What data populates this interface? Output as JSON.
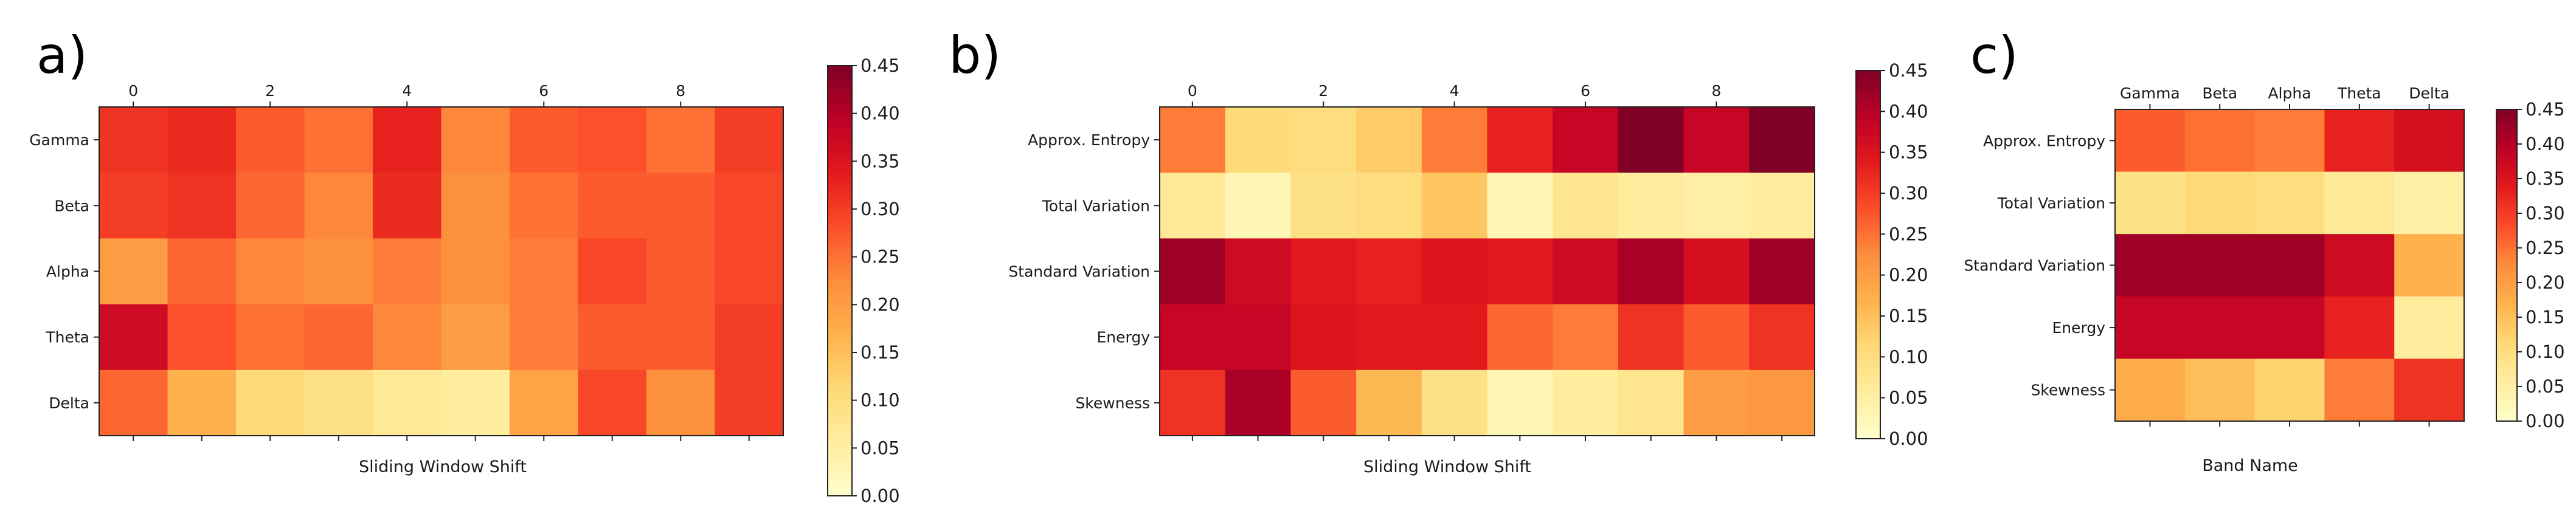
{
  "colors": {
    "ylorrd": [
      "#ffffcc",
      "#ffeda0",
      "#fed976",
      "#feb24c",
      "#fd8d3c",
      "#fc4e2a",
      "#e31a1c",
      "#bd0026",
      "#800026"
    ]
  },
  "chart_data": [
    {
      "type": "heatmap",
      "panel": "a)",
      "xlabel": "Sliding Window Shift",
      "ylabel": "",
      "x_tick_labels": [
        "0",
        "2",
        "4",
        "6",
        "8"
      ],
      "x_tick_positions": [
        0,
        2,
        4,
        6,
        8
      ],
      "x_ticks_top": true,
      "n_cols": 10,
      "rows": [
        "Gamma",
        "Beta",
        "Alpha",
        "Theta",
        "Delta"
      ],
      "values": [
        [
          0.31,
          0.32,
          0.27,
          0.25,
          0.33,
          0.23,
          0.27,
          0.28,
          0.25,
          0.3
        ],
        [
          0.3,
          0.31,
          0.26,
          0.23,
          0.32,
          0.22,
          0.25,
          0.27,
          0.27,
          0.29
        ],
        [
          0.2,
          0.26,
          0.23,
          0.22,
          0.24,
          0.22,
          0.24,
          0.29,
          0.27,
          0.29
        ],
        [
          0.37,
          0.28,
          0.25,
          0.26,
          0.23,
          0.2,
          0.24,
          0.27,
          0.27,
          0.3
        ],
        [
          0.26,
          0.17,
          0.11,
          0.09,
          0.07,
          0.06,
          0.19,
          0.29,
          0.22,
          0.3
        ]
      ],
      "vmin": 0.0,
      "vmax": 0.45,
      "colorbar_ticks": [
        "0.00",
        "0.05",
        "0.10",
        "0.15",
        "0.20",
        "0.25",
        "0.30",
        "0.35",
        "0.40",
        "0.45"
      ],
      "colormap": "YlOrRd"
    },
    {
      "type": "heatmap",
      "panel": "b)",
      "xlabel": "Sliding Window Shift",
      "ylabel": "",
      "x_tick_labels": [
        "0",
        "2",
        "4",
        "6",
        "8"
      ],
      "x_tick_positions": [
        0,
        2,
        4,
        6,
        8
      ],
      "x_ticks_top": true,
      "n_cols": 10,
      "rows": [
        "Approx. Entropy",
        "Total Variation",
        "Standard Variation",
        "Energy",
        "Skewness"
      ],
      "values": [
        [
          0.24,
          0.11,
          0.1,
          0.13,
          0.24,
          0.33,
          0.38,
          0.45,
          0.38,
          0.45
        ],
        [
          0.07,
          0.03,
          0.09,
          0.1,
          0.14,
          0.03,
          0.08,
          0.06,
          0.05,
          0.06
        ],
        [
          0.42,
          0.37,
          0.34,
          0.33,
          0.35,
          0.34,
          0.37,
          0.41,
          0.36,
          0.42
        ],
        [
          0.38,
          0.38,
          0.35,
          0.34,
          0.34,
          0.26,
          0.24,
          0.31,
          0.27,
          0.31
        ],
        [
          0.31,
          0.41,
          0.27,
          0.16,
          0.09,
          0.03,
          0.06,
          0.08,
          0.2,
          0.21
        ]
      ],
      "vmin": 0.0,
      "vmax": 0.45,
      "colorbar_ticks": [
        "0.00",
        "0.05",
        "0.10",
        "0.15",
        "0.20",
        "0.25",
        "0.30",
        "0.35",
        "0.40",
        "0.45"
      ],
      "colormap": "YlOrRd"
    },
    {
      "type": "heatmap",
      "panel": "c)",
      "xlabel": "Band Name",
      "ylabel": "",
      "x_tick_labels": [
        "Gamma",
        "Beta",
        "Alpha",
        "Theta",
        "Delta"
      ],
      "x_tick_positions": [
        0,
        1,
        2,
        3,
        4
      ],
      "x_ticks_top": true,
      "n_cols": 5,
      "rows": [
        "Approx. Entropy",
        "Total Variation",
        "Standard Variation",
        "Energy",
        "Skewness"
      ],
      "values": [
        [
          0.27,
          0.25,
          0.24,
          0.33,
          0.36
        ],
        [
          0.09,
          0.11,
          0.1,
          0.07,
          0.05
        ],
        [
          0.42,
          0.42,
          0.42,
          0.37,
          0.17
        ],
        [
          0.38,
          0.38,
          0.38,
          0.33,
          0.06
        ],
        [
          0.18,
          0.15,
          0.12,
          0.24,
          0.31
        ]
      ],
      "vmin": 0.0,
      "vmax": 0.45,
      "colorbar_ticks": [
        "0.00",
        "0.05",
        "0.10",
        "0.15",
        "0.20",
        "0.25",
        "0.30",
        "0.35",
        "0.40",
        "0.45"
      ],
      "colormap": "YlOrRd"
    }
  ]
}
